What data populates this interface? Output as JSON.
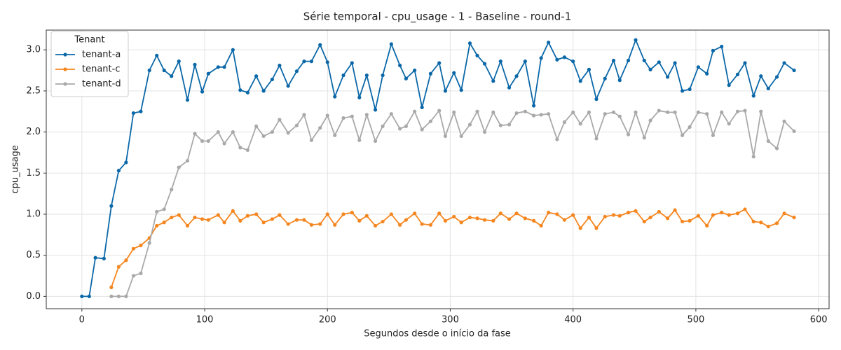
{
  "chart_data": {
    "type": "line",
    "title": "Série temporal - cpu_usage - 1 - Baseline - round-1",
    "x_label": "Segundos desde o início da fase",
    "y_label": "cpu_usage",
    "legend_title": "Tenant",
    "legend": "upper left",
    "grid": true,
    "xlim": [
      -29,
      608.5
    ],
    "ylim": [
      -0.15,
      3.24
    ],
    "xticks": [
      0,
      100,
      200,
      300,
      400,
      500,
      600
    ],
    "yticks": [
      {
        "value": 0,
        "label": "0.0"
      },
      0.5,
      {
        "value": 1,
        "label": "1.0"
      },
      1.5,
      {
        "value": 2,
        "label": "2.0"
      },
      2.5,
      {
        "value": 3,
        "label": "3.0"
      }
    ],
    "x": [
      0,
      6,
      11,
      18,
      24,
      30,
      36,
      42,
      48,
      55,
      61,
      67,
      73,
      79,
      86,
      92,
      98,
      103,
      111,
      116,
      123,
      129,
      135,
      142,
      148,
      155,
      161,
      168,
      175,
      181,
      187,
      194,
      200,
      206,
      213,
      220,
      226,
      232,
      239,
      245,
      252,
      259,
      264,
      271,
      277,
      284,
      291,
      296,
      303,
      309,
      316,
      322,
      328,
      335,
      341,
      348,
      354,
      361,
      368,
      374,
      380,
      387,
      393,
      400,
      406,
      413,
      419,
      426,
      433,
      438,
      445,
      451,
      458,
      463,
      470,
      477,
      483,
      489,
      495,
      502,
      509,
      514,
      521,
      527,
      534,
      540,
      547,
      553,
      559,
      566,
      572,
      580
    ],
    "series": [
      {
        "name": "tenant-a",
        "color": "#0b68a8",
        "values": [
          0,
          0,
          0.47,
          0.46,
          1.1,
          1.53,
          1.63,
          2.23,
          2.25,
          2.75,
          2.93,
          2.75,
          2.68,
          2.86,
          2.39,
          2.82,
          2.49,
          2.71,
          2.79,
          2.79,
          3.0,
          2.51,
          2.48,
          2.68,
          2.5,
          2.64,
          2.81,
          2.56,
          2.74,
          2.86,
          2.86,
          3.06,
          2.85,
          2.43,
          2.69,
          2.84,
          2.42,
          2.69,
          2.27,
          2.69,
          3.07,
          2.81,
          2.65,
          2.75,
          2.3,
          2.71,
          2.84,
          2.5,
          2.72,
          2.51,
          3.08,
          2.93,
          2.83,
          2.62,
          2.86,
          2.54,
          2.68,
          2.86,
          2.32,
          2.9,
          3.09,
          2.88,
          2.91,
          2.86,
          2.62,
          2.76,
          2.4,
          2.65,
          2.87,
          2.63,
          2.87,
          3.12,
          2.87,
          2.76,
          2.85,
          2.67,
          2.84,
          2.5,
          2.52,
          2.79,
          2.71,
          2.99,
          3.04,
          2.57,
          2.7,
          2.84,
          2.44,
          2.68,
          2.53,
          2.67,
          2.84,
          2.75
        ]
      },
      {
        "name": "tenant-c",
        "color": "#f5861f",
        "values": [
          null,
          null,
          null,
          null,
          0.11,
          0.36,
          0.44,
          0.58,
          0.62,
          0.71,
          0.86,
          0.9,
          0.96,
          0.99,
          0.86,
          0.96,
          0.94,
          0.93,
          0.99,
          0.9,
          1.04,
          0.92,
          0.98,
          1.0,
          0.9,
          0.94,
          0.99,
          0.88,
          0.93,
          0.93,
          0.87,
          0.88,
          1.0,
          0.87,
          1.0,
          1.02,
          0.92,
          0.98,
          0.86,
          0.91,
          1.0,
          0.87,
          0.93,
          1.01,
          0.88,
          0.87,
          1.01,
          0.92,
          0.97,
          0.9,
          0.96,
          0.95,
          0.93,
          0.92,
          1.01,
          0.94,
          1.01,
          0.95,
          0.92,
          0.86,
          1.02,
          1.0,
          0.93,
          0.99,
          0.83,
          0.96,
          0.83,
          0.97,
          0.99,
          0.98,
          1.02,
          1.04,
          0.91,
          0.96,
          1.03,
          0.95,
          1.05,
          0.91,
          0.92,
          0.98,
          0.86,
          0.99,
          1.02,
          0.99,
          1.01,
          1.06,
          0.91,
          0.9,
          0.85,
          0.89,
          1.01,
          0.96
        ]
      },
      {
        "name": "tenant-d",
        "color": "#a9a9a9",
        "values": [
          null,
          null,
          null,
          null,
          0,
          0,
          0,
          0.25,
          0.28,
          0.65,
          1.03,
          1.06,
          1.3,
          1.57,
          1.65,
          1.98,
          1.89,
          1.89,
          2.0,
          1.86,
          2.0,
          1.81,
          1.78,
          2.07,
          1.95,
          2.0,
          2.15,
          1.99,
          2.08,
          2.21,
          1.9,
          2.05,
          2.2,
          1.96,
          2.17,
          2.19,
          1.9,
          2.21,
          1.89,
          2.07,
          2.22,
          2.04,
          2.07,
          2.25,
          2.03,
          2.13,
          2.26,
          1.95,
          2.24,
          1.95,
          2.09,
          2.25,
          2.0,
          2.24,
          2.08,
          2.09,
          2.23,
          2.25,
          2.2,
          2.21,
          2.22,
          1.91,
          2.12,
          2.24,
          2.1,
          2.24,
          1.92,
          2.22,
          2.24,
          2.19,
          1.97,
          2.24,
          1.93,
          2.14,
          2.26,
          2.24,
          2.24,
          1.96,
          2.06,
          2.24,
          2.22,
          1.96,
          2.24,
          2.1,
          2.25,
          2.26,
          1.7,
          2.25,
          1.89,
          1.8,
          2.13,
          2.01
        ]
      }
    ]
  }
}
